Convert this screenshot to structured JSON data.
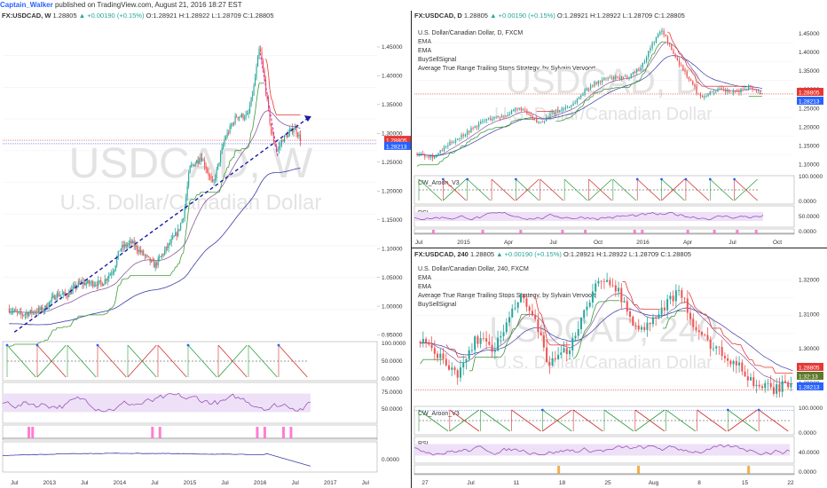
{
  "header": {
    "author": "Captain_Walker",
    "published": "published on TradingView.com, August 21, 2016 18:27 EST"
  },
  "colors": {
    "candle_up": "#26a69a",
    "candle_down": "#ef5350",
    "trend_line": "#1a1aa8",
    "price_label": "#e53935",
    "stop_label": "#2962ff",
    "ema_fast": "#8a5a9a",
    "ema_slow": "#3b3ba8",
    "atr_stop": "#e53935",
    "aroon_up": "#2e9e3e",
    "aroon_down": "#d32f2f",
    "rsi": "#8e44ad",
    "rsi_band": "#ede0f7",
    "watermark": "#e3e3e3",
    "signal_up": "#f0a030",
    "signal_pink": "#ff66cc"
  },
  "panes": {
    "weekly": {
      "symbol": "FX:USDCAD, W",
      "last": "1.28805",
      "change": "▲ +0.00190 (+0.15%)",
      "o": "O:1.28921",
      "h": "H:1.28922",
      "l": "L:1.28709",
      "c": "C:1.28805",
      "watermark_big": "USDCAD, W",
      "watermark_small": "U.S. Dollar/Canadian Dollar",
      "price_label": "1.28805",
      "stop_label": "1.28213",
      "price_ticks": [
        "1.45000",
        "1.40000",
        "1.35000",
        "1.30000",
        "1.25000",
        "1.20000",
        "1.15000",
        "1.10000",
        "1.05000",
        "1.00000",
        "0.95000"
      ],
      "aroon_ticks": [
        "100.0000",
        "50.0000",
        "0.0000"
      ],
      "rsi_ticks": [
        "75.0000",
        "50.0000"
      ],
      "bottom_ticks": [
        "0.0000"
      ],
      "time_ticks": [
        "Jul",
        "2013",
        "Jul",
        "2014",
        "Jul",
        "2015",
        "Jul",
        "2016",
        "Jul",
        "2017",
        "Jul"
      ]
    },
    "daily": {
      "symbol": "FX:USDCAD, D",
      "last": "1.28805",
      "change": "▲ +0.00190 (+0.15%)",
      "o": "O:1.28921",
      "h": "H:1.28922",
      "l": "L:1.28709",
      "c": "C:1.28805",
      "title": "U.S. Dollar/Canadian Dollar, D, FXCM",
      "legend": [
        "EMA",
        "EMA",
        "BuySellSignal",
        "Average True Range Trailing Stops Strategy, by Sylvain Vervoort"
      ],
      "watermark_big": "USDCAD, D",
      "watermark_small": "U.S. Dollar/Canadian Dollar",
      "price_label": "1.28805",
      "stop_label": "1.28213",
      "price_ticks": [
        "1.45000",
        "1.40000",
        "1.35000",
        "1.30000",
        "1.25000",
        "1.20000",
        "1.15000",
        "1.10000"
      ],
      "aroon_label": "CW_Aroon_V3",
      "aroon_ticks": [
        "100.0000",
        "0.0000"
      ],
      "rsi_label": "RSI",
      "rsi_ticks": [
        "50.0000"
      ],
      "sig_ticks": [
        "0.0000"
      ],
      "time_ticks": [
        "Jul",
        "2015",
        "Apr",
        "Jul",
        "Oct",
        "2016",
        "Apr",
        "Jul",
        "Oct"
      ]
    },
    "h4": {
      "symbol": "FX:USDCAD, 240",
      "last": "1.28805",
      "change": "▲ +0.00190 (+0.15%)",
      "o": "O:1.28921",
      "h": "H:1.28922",
      "l": "L:1.28709",
      "c": "C:1.28805",
      "title": "U.S. Dollar/Canadian Dollar, 240, FXCM",
      "legend": [
        "EMA",
        "EMA",
        "Average True Range Trailing Stops Strategy, by Sylvain Vervoort",
        "BuySellSignal"
      ],
      "watermark_big": "USDCAD, 240",
      "watermark_small": "U.S. Dollar/Canadian Dollar",
      "price_label": "1.28805",
      "countdown": "1:32:13",
      "stop_label": "1.28213",
      "price_ticks": [
        "1.32000",
        "1.31000",
        "1.30000",
        "1.29000"
      ],
      "aroon_label": "CW_Aroon_V3",
      "aroon_ticks": [
        "100.0000",
        "0.0000"
      ],
      "rsi_label": "RSI",
      "rsi_ticks": [
        "40.0000"
      ],
      "sig_ticks": [
        "0.0000"
      ],
      "time_ticks": [
        "27",
        "Jul",
        "11",
        "18",
        "25",
        "Aug",
        "8",
        "15",
        "22"
      ]
    }
  },
  "chart_data": [
    {
      "type": "line",
      "pane": "weekly",
      "x_range": [
        "2012-05",
        "2017-09"
      ],
      "ylim": [
        0.94,
        1.49
      ],
      "series": [],
      "close_path": [
        [
          "2012-06",
          0.995
        ],
        [
          "2012-08",
          0.985
        ],
        [
          "2012-10",
          0.99
        ],
        [
          "2012-12",
          0.995
        ],
        [
          "2013-02",
          1.02
        ],
        [
          "2013-04",
          1.02
        ],
        [
          "2013-06",
          1.04
        ],
        [
          "2013-08",
          1.04
        ],
        [
          "2013-10",
          1.04
        ],
        [
          "2013-12",
          1.065
        ],
        [
          "2014-01",
          1.1
        ],
        [
          "2014-03",
          1.11
        ],
        [
          "2014-05",
          1.09
        ],
        [
          "2014-07",
          1.07
        ],
        [
          "2014-09",
          1.1
        ],
        [
          "2014-11",
          1.13
        ],
        [
          "2014-12",
          1.16
        ],
        [
          "2015-01",
          1.24
        ],
        [
          "2015-03",
          1.26
        ],
        [
          "2015-05",
          1.21
        ],
        [
          "2015-07",
          1.29
        ],
        [
          "2015-09",
          1.33
        ],
        [
          "2015-11",
          1.33
        ],
        [
          "2015-12",
          1.38
        ],
        [
          "2016-01",
          1.45
        ],
        [
          "2016-02",
          1.38
        ],
        [
          "2016-03",
          1.3
        ],
        [
          "2016-04",
          1.27
        ],
        [
          "2016-05",
          1.29
        ],
        [
          "2016-06",
          1.3
        ],
        [
          "2016-07",
          1.31
        ],
        [
          "2016-08",
          1.29
        ]
      ],
      "trend_line": [
        [
          "2012-07",
          0.955
        ],
        [
          "2016-09",
          1.325
        ]
      ],
      "last_price": 1.28805,
      "stop_level": 1.28213
    }
  ]
}
